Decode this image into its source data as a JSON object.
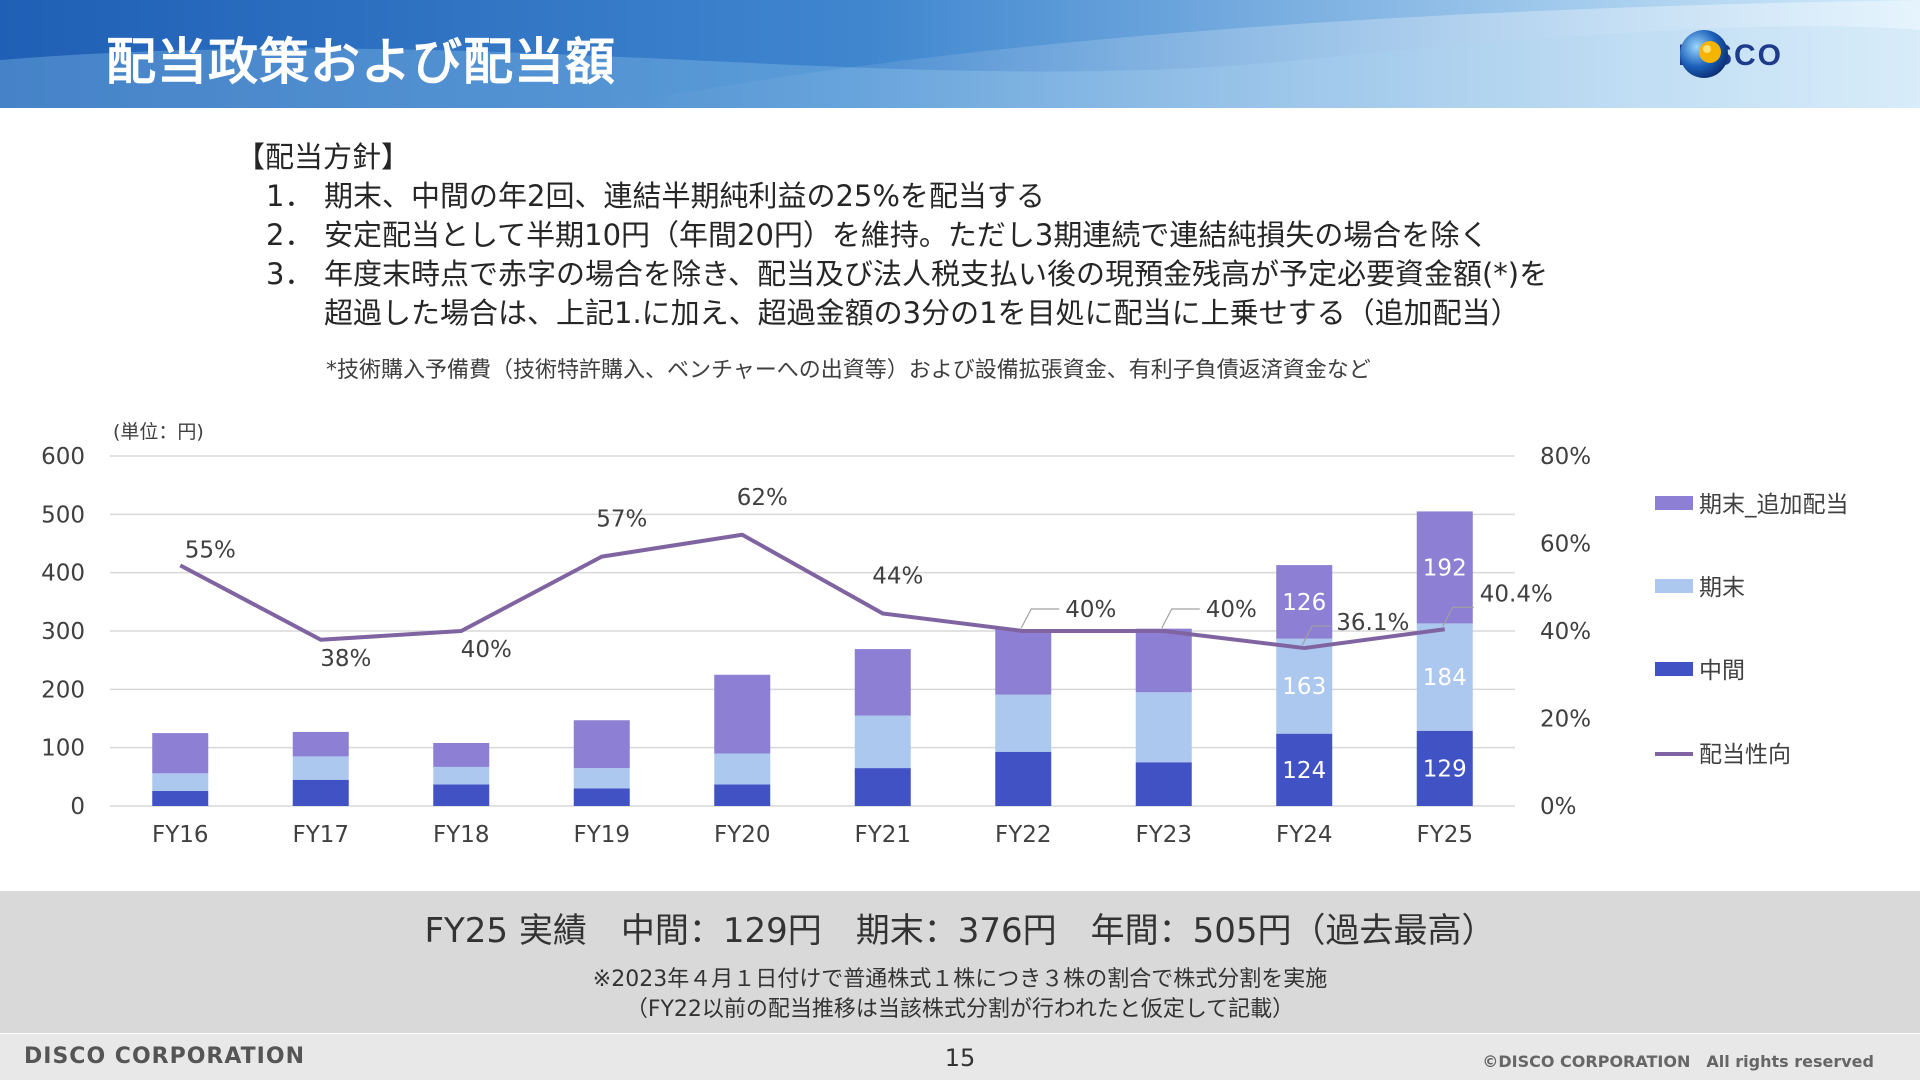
{
  "header": {
    "title": "配当政策および配当額",
    "logo_text": "DISCO"
  },
  "policy": {
    "heading": "【配当方針】",
    "items": [
      {
        "num": "1．",
        "lines": [
          "期末、中間の年2回、連結半期純利益の25%を配当する"
        ]
      },
      {
        "num": "2．",
        "lines": [
          "安定配当として半期10円（年間20円）を維持。ただし3期連続で連結純損失の場合を除く"
        ]
      },
      {
        "num": "3．",
        "lines": [
          "年度末時点で赤字の場合を除き、配当及び法人税支払い後の現預金残高が予定必要資金額(*)を",
          "超過した場合は、上記1.に加え、超過金額の3分の1を目処に配当に上乗せする（追加配当）"
        ]
      }
    ],
    "footnote": "*技術購入予備費（技術特許購入、ベンチャーへの出資等）および設備拡張資金、有利子負債返済資金など"
  },
  "chart_data": {
    "type": "bar",
    "stacked": true,
    "unit_label": "(単位：円)",
    "categories": [
      "FY16",
      "FY17",
      "FY18",
      "FY19",
      "FY20",
      "FY21",
      "FY22",
      "FY23",
      "FY24",
      "FY25"
    ],
    "series": [
      {
        "name": "中間",
        "color": "#4052c4",
        "values": [
          26,
          45,
          37,
          30,
          37,
          65,
          93,
          75,
          124,
          129
        ],
        "labels": [
          "",
          "",
          "",
          "",
          "",
          "",
          "",
          "",
          "124",
          "129"
        ]
      },
      {
        "name": "期末",
        "color": "#adc8ef",
        "values": [
          30,
          40,
          30,
          35,
          53,
          90,
          98,
          120,
          163,
          184
        ],
        "labels": [
          "",
          "",
          "",
          "",
          "",
          "",
          "",
          "",
          "163",
          "184"
        ]
      },
      {
        "name": "期末_追加配当",
        "color": "#8c7fd4",
        "values": [
          69,
          42,
          41,
          82,
          135,
          114,
          112,
          109,
          126,
          192
        ],
        "labels": [
          "",
          "",
          "",
          "",
          "",
          "",
          "",
          "",
          "126",
          "192"
        ]
      }
    ],
    "line_series": {
      "name": "配当性向",
      "color": "#8064a2",
      "axis": "right",
      "values": [
        55,
        38,
        40,
        57,
        62,
        44,
        40,
        40,
        36.1,
        40.4
      ],
      "labels": [
        "55%",
        "38%",
        "40%",
        "57%",
        "62%",
        "44%",
        "40%",
        "40%",
        "36.1%",
        "40.4%"
      ]
    },
    "yleft": {
      "min": 0,
      "max": 600,
      "ticks": [
        "0",
        "100",
        "200",
        "300",
        "400",
        "500",
        "600"
      ]
    },
    "yright": {
      "min": 0,
      "max": 80,
      "ticks": [
        "0%",
        "20%",
        "40%",
        "60%",
        "80%"
      ]
    },
    "grid": true,
    "legend": {
      "position": "right",
      "entries": [
        "期末_追加配当",
        "期末",
        "中間",
        "配当性向"
      ]
    }
  },
  "summary": {
    "main": "FY25 実績　中間：129円　期末：376円　年間：505円（過去最高）",
    "note1": "※2023年４月１日付けで普通株式１株につき３株の割合で株式分割を実施",
    "note2": "（FY22以前の配当推移は当該株式分割が行われたと仮定して記載）"
  },
  "footer": {
    "company": "DISCO CORPORATION",
    "page": "15",
    "copyright": "©DISCO CORPORATION　All rights reserved"
  }
}
